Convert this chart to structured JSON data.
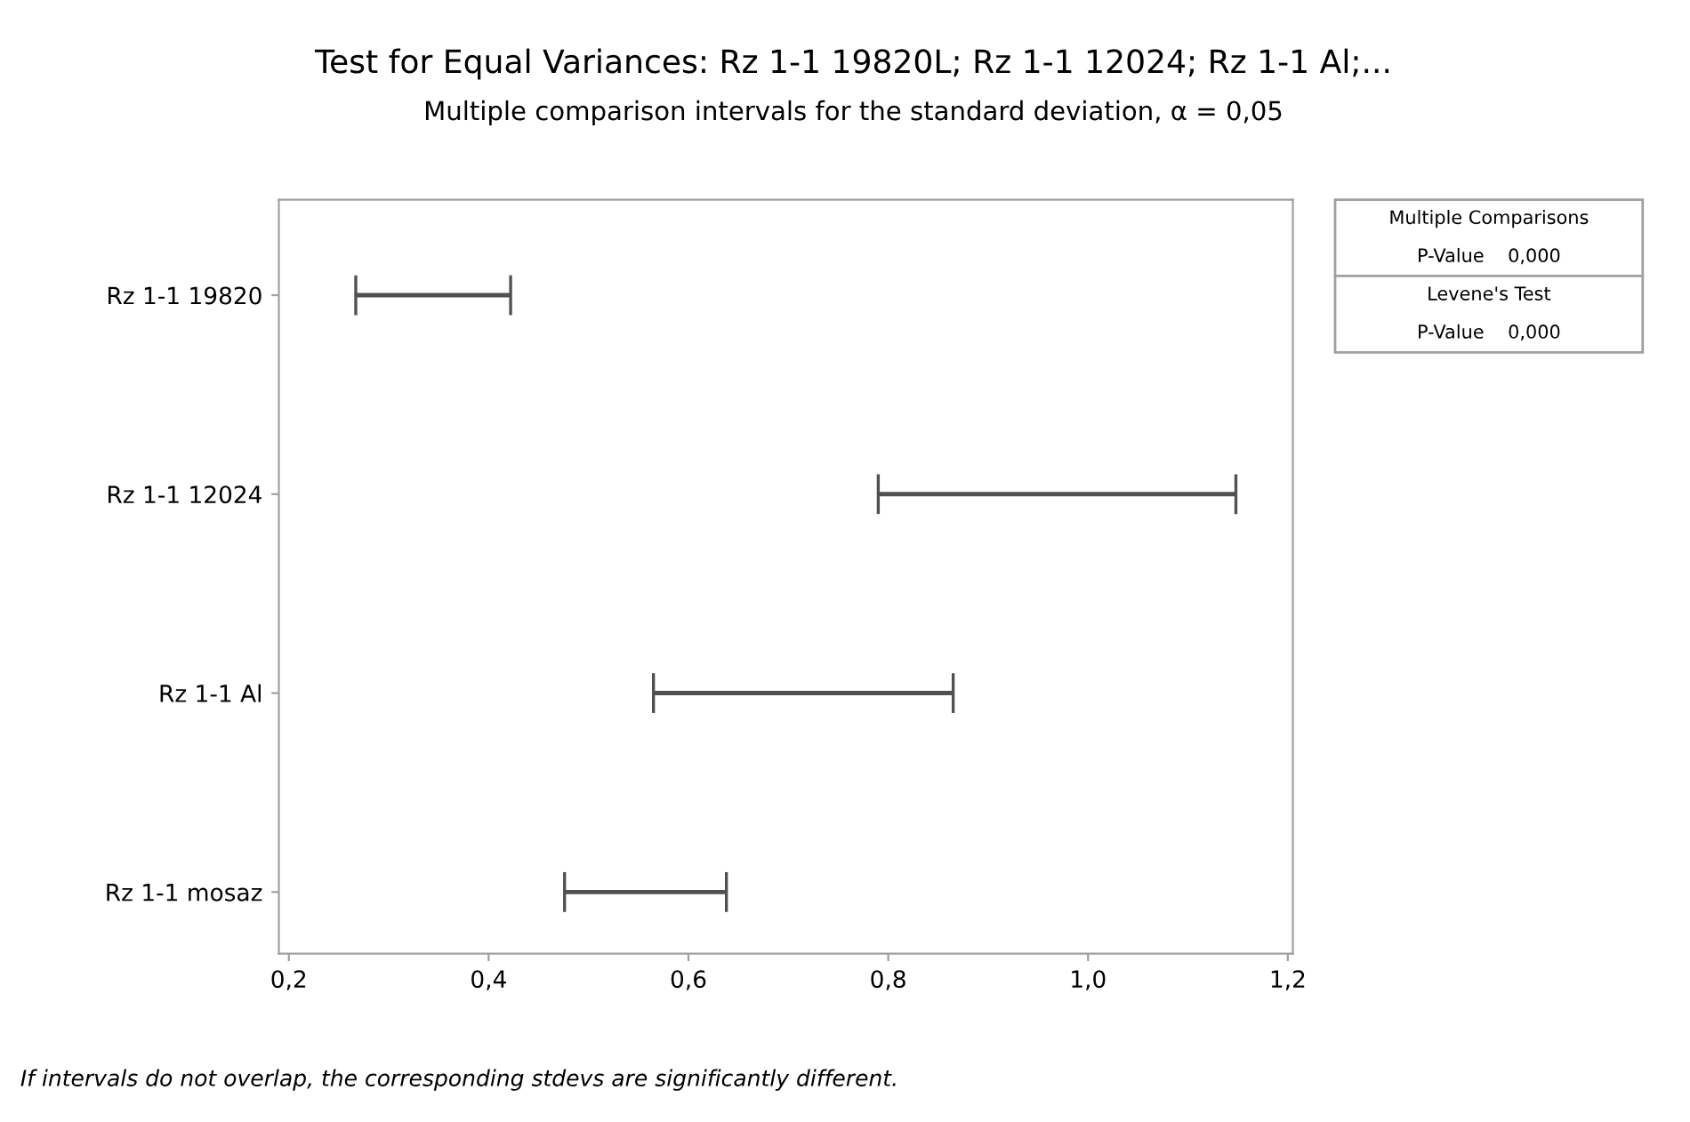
{
  "chart_data": {
    "type": "bar",
    "orientation": "horizontal",
    "title": "Test for Equal Variances: Rz 1-1 19820L; Rz 1-1 12024; Rz 1-1 Al;...",
    "subtitle": "Multiple comparison intervals for the standard deviation, α = 0,05",
    "categories": [
      "Rz 1-1 19820",
      "Rz 1-1 12024",
      "Rz 1-1 Al",
      "Rz 1-1 mosaz"
    ],
    "base": [
      0.267,
      0.79,
      0.565,
      0.476
    ],
    "values": [
      0.155,
      0.358,
      0.3,
      0.162
    ],
    "color": "#505050",
    "xlim": [
      0.19,
      1.205
    ],
    "xticks": [
      {
        "value": 0.2,
        "label": "0,2"
      },
      {
        "value": 0.4,
        "label": "0,4"
      },
      {
        "value": 0.6,
        "label": "0,6"
      },
      {
        "value": 0.8,
        "label": "0,8"
      },
      {
        "value": 1.0,
        "label": "1,0"
      },
      {
        "value": 1.2,
        "label": "1,2"
      }
    ],
    "grid": false,
    "annotations": [
      "Multiple Comparisons",
      "P-Value    0,000",
      "Levene's Test",
      "P-Value    0,000",
      "If intervals do not overlap, the corresponding stdevs are significantly different."
    ]
  }
}
